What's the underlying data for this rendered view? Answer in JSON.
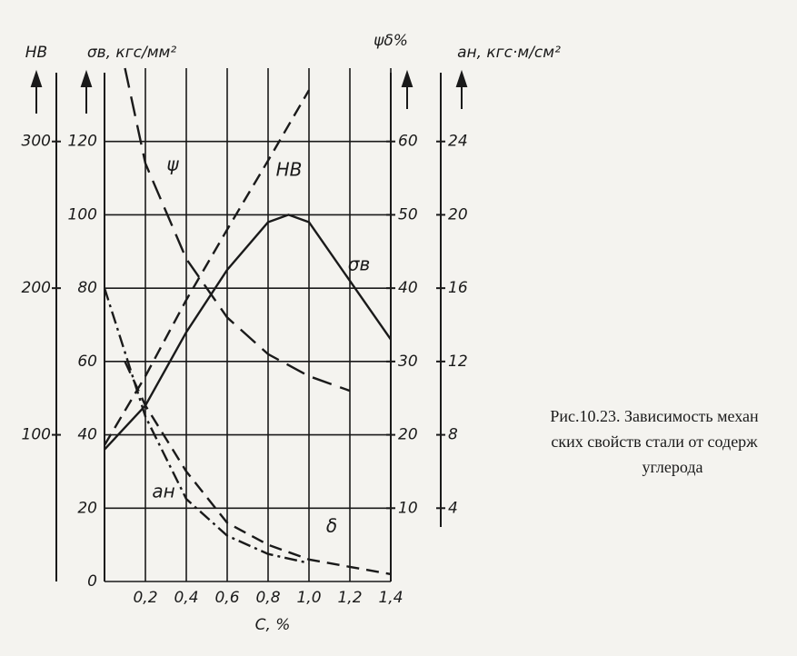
{
  "chart_data": {
    "type": "line",
    "xlabel": "C, %",
    "xlim": [
      0,
      1.4
    ],
    "xticks": [
      {
        "value": 0.2,
        "label": "0,2"
      },
      {
        "value": 0.4,
        "label": "0,4"
      },
      {
        "value": 0.6,
        "label": "0,6"
      },
      {
        "value": 0.8,
        "label": "0,8"
      },
      {
        "value": 1.0,
        "label": "1,0"
      },
      {
        "value": 1.2,
        "label": "1,2"
      },
      {
        "value": 1.4,
        "label": "1,4"
      }
    ],
    "ylabel": "σв, кгс/мм²",
    "ylim": [
      0,
      140
    ],
    "yticks": [
      0,
      20,
      40,
      60,
      80,
      100,
      120
    ],
    "y2label": "ψδ%",
    "y2lim": [
      0,
      70
    ],
    "y2ticks": [
      10,
      20,
      30,
      40,
      50,
      60
    ],
    "y3label": "aн, кгс·м/см²",
    "y3lim": [
      0,
      28
    ],
    "y3ticks": [
      4,
      8,
      12,
      16,
      20,
      24
    ],
    "y4label": "HB",
    "y4lim": [
      0,
      350
    ],
    "y4ticks": [
      100,
      200,
      300
    ],
    "grid": true,
    "series": [
      {
        "name": "σв",
        "axis": "y",
        "color": "#1a1a1a",
        "dash": "solid",
        "x": [
          0,
          0.2,
          0.4,
          0.6,
          0.8,
          0.9,
          1.0,
          1.2,
          1.4
        ],
        "values": [
          36,
          48,
          68,
          85,
          98,
          100,
          98,
          82,
          66
        ]
      },
      {
        "name": "HB",
        "axis": "y4",
        "color": "#1a1a1a",
        "dash": "dashed",
        "x": [
          0,
          0.2,
          0.4,
          0.6,
          0.8,
          1.0
        ],
        "values": [
          93,
          140,
          192,
          240,
          287,
          335
        ]
      },
      {
        "name": "ψ",
        "axis": "y2",
        "color": "#1a1a1a",
        "dash": "longdash",
        "x": [
          0.1,
          0.2,
          0.4,
          0.6,
          0.8,
          1.0,
          1.2
        ],
        "values": [
          70,
          57,
          44,
          36,
          31,
          28,
          26
        ]
      },
      {
        "name": "δ",
        "axis": "y2",
        "color": "#1a1a1a",
        "dash": "dashed",
        "x": [
          0.1,
          0.2,
          0.4,
          0.6,
          0.8,
          1.0,
          1.2,
          1.4
        ],
        "values": [
          30,
          24,
          15,
          8,
          5,
          3,
          2,
          1
        ]
      },
      {
        "name": "aн",
        "axis": "y3",
        "color": "#1a1a1a",
        "dash": "dashdot",
        "x": [
          0,
          0.2,
          0.4,
          0.6,
          0.8,
          1.0
        ],
        "values": [
          16,
          9,
          4.5,
          2.5,
          1.5,
          1
        ]
      }
    ],
    "caption_lines": [
      "Рис.10.23. Зависимость механ",
      "ских свойств стали от содерж",
      "углерода"
    ]
  }
}
